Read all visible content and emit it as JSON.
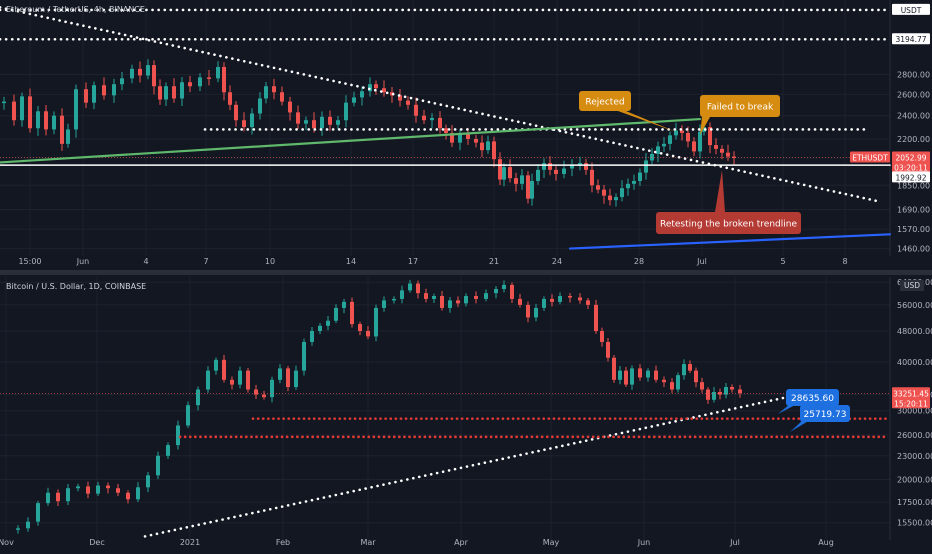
{
  "colors": {
    "background": "#131722",
    "grid": "#1e222d",
    "up": "#26a69a",
    "down": "#ef5350",
    "axis_text": "#b2b5be",
    "price_tag": "#ef5350",
    "white": "#ffffff",
    "green_line": "#5fb86b",
    "blue_line": "#2962ff",
    "orange_label": "#d68b11",
    "red_label": "#b43a34",
    "blue_label": "#1e6fe0",
    "support": "#e53935"
  },
  "chart_data": [
    {
      "type": "candlestick",
      "title": "Ethereum / TetherUS, 4h, BINANCE",
      "symbol_tag": "ETHUSDT",
      "y_scale": "log",
      "ylim": [
        1420,
        3700
      ],
      "y_ticks": [
        "2800.00",
        "2600.00",
        "2400.00",
        "2200.00",
        "2050.00",
        "1850.00",
        "1690.00",
        "1570.00",
        "1460.00"
      ],
      "x_ticks": [
        "15:00",
        "Jun",
        "4",
        "7",
        "10",
        "14",
        "17",
        "21",
        "24",
        "28",
        "Jul",
        "5",
        "8"
      ],
      "price_marks": [
        {
          "label": "USDT",
          "value": 3565
        },
        {
          "label": "3194.77",
          "value": 3194.77
        },
        {
          "label": "2052.99",
          "value": 2052.99
        },
        {
          "label": "03:20:11",
          "value": 1992.92
        },
        {
          "label": "1992.92",
          "value": 1992.92
        }
      ],
      "last_price": 2052.99,
      "candles_close_path": [
        [
          0,
          2530
        ],
        [
          10,
          2360
        ],
        [
          18,
          2580
        ],
        [
          26,
          2290
        ],
        [
          34,
          2440
        ],
        [
          42,
          2280
        ],
        [
          50,
          2400
        ],
        [
          58,
          2160
        ],
        [
          64,
          2280
        ],
        [
          72,
          2650
        ],
        [
          82,
          2520
        ],
        [
          90,
          2690
        ],
        [
          100,
          2590
        ],
        [
          110,
          2700
        ],
        [
          118,
          2760
        ],
        [
          128,
          2860
        ],
        [
          136,
          2790
        ],
        [
          144,
          2900
        ],
        [
          150,
          2680
        ],
        [
          156,
          2550
        ],
        [
          162,
          2680
        ],
        [
          170,
          2560
        ],
        [
          178,
          2720
        ],
        [
          186,
          2680
        ],
        [
          196,
          2770
        ],
        [
          205,
          2760
        ],
        [
          214,
          2880
        ],
        [
          220,
          2620
        ],
        [
          226,
          2500
        ],
        [
          232,
          2360
        ],
        [
          240,
          2300
        ],
        [
          248,
          2420
        ],
        [
          256,
          2560
        ],
        [
          262,
          2680
        ],
        [
          270,
          2620
        ],
        [
          278,
          2530
        ],
        [
          286,
          2430
        ],
        [
          294,
          2330
        ],
        [
          302,
          2360
        ],
        [
          310,
          2290
        ],
        [
          318,
          2390
        ],
        [
          326,
          2320
        ],
        [
          334,
          2360
        ],
        [
          342,
          2520
        ],
        [
          350,
          2570
        ],
        [
          358,
          2630
        ],
        [
          366,
          2700
        ],
        [
          372,
          2660
        ],
        [
          380,
          2620
        ],
        [
          388,
          2590
        ],
        [
          396,
          2540
        ],
        [
          404,
          2500
        ],
        [
          412,
          2400
        ],
        [
          420,
          2360
        ],
        [
          428,
          2380
        ],
        [
          436,
          2290
        ],
        [
          442,
          2250
        ],
        [
          448,
          2170
        ],
        [
          456,
          2240
        ],
        [
          464,
          2200
        ],
        [
          472,
          2170
        ],
        [
          478,
          2110
        ],
        [
          484,
          2180
        ],
        [
          490,
          2040
        ],
        [
          496,
          1890
        ],
        [
          500,
          1980
        ],
        [
          506,
          1900
        ],
        [
          512,
          1860
        ],
        [
          518,
          1920
        ],
        [
          524,
          1760
        ],
        [
          528,
          1880
        ],
        [
          534,
          1960
        ],
        [
          540,
          2010
        ],
        [
          546,
          1960
        ],
        [
          552,
          1930
        ],
        [
          560,
          1970
        ],
        [
          568,
          2000
        ],
        [
          576,
          2010
        ],
        [
          582,
          1960
        ],
        [
          588,
          1850
        ],
        [
          594,
          1820
        ],
        [
          600,
          1780
        ],
        [
          606,
          1750
        ],
        [
          612,
          1770
        ],
        [
          618,
          1830
        ],
        [
          624,
          1860
        ],
        [
          630,
          1880
        ],
        [
          636,
          1940
        ],
        [
          642,
          2030
        ],
        [
          648,
          2080
        ],
        [
          654,
          2140
        ],
        [
          660,
          2160
        ],
        [
          666,
          2230
        ],
        [
          672,
          2270
        ],
        [
          678,
          2250
        ],
        [
          684,
          2180
        ],
        [
          690,
          2100
        ],
        [
          696,
          2260
        ],
        [
          700,
          2300
        ],
        [
          706,
          2150
        ],
        [
          712,
          2120
        ],
        [
          718,
          2090
        ],
        [
          724,
          2060
        ],
        [
          730,
          2050
        ]
      ],
      "annotations": [
        {
          "text": "Rejected",
          "style": "orange"
        },
        {
          "text": "Failed to break",
          "style": "orange"
        },
        {
          "text": "Retesting the broken trendline",
          "style": "red"
        }
      ],
      "lines": [
        {
          "kind": "descending dotted trendline",
          "color": "white",
          "from": [
            0,
            3600
          ],
          "to": [
            880,
            1740
          ]
        },
        {
          "kind": "horizontal dotted resistance",
          "color": "white",
          "value": 2280
        },
        {
          "kind": "horizontal solid level",
          "color": "white",
          "value": 1995
        },
        {
          "kind": "ascending trendline",
          "color": "green",
          "from": [
            0,
            2015
          ],
          "to": [
            700,
            2370
          ]
        },
        {
          "kind": "ascending trendline",
          "color": "blue",
          "from": [
            570,
            1460
          ],
          "to": [
            890,
            1540
          ]
        },
        {
          "kind": "horizontal dotted",
          "color": "white",
          "value": 3565
        },
        {
          "kind": "horizontal dotted",
          "color": "white",
          "value": 3194.77
        }
      ]
    },
    {
      "type": "candlestick",
      "title": "Bitcoin / U.S. Dollar, 1D, COINBASE",
      "y_scale": "log",
      "ylim": [
        14000,
        66000
      ],
      "currency_tag": "USD",
      "y_ticks": [
        "64000.00",
        "56000.00",
        "48000.00",
        "40000.00",
        "33000.00",
        "30000.00",
        "26000.00",
        "23000.00",
        "20000.00",
        "17500.00",
        "15500.00"
      ],
      "x_ticks": [
        "Nov",
        "Dec",
        "2021",
        "Feb",
        "Mar",
        "Apr",
        "May",
        "Jun",
        "Jul",
        "Aug"
      ],
      "price_marks": [
        {
          "label": "33251.45",
          "value": 33251.45
        },
        {
          "label": "15:20:11",
          "value": 31700
        }
      ],
      "last_price": 33251.45,
      "candles_close_path": [
        [
          14,
          15000
        ],
        [
          24,
          15600
        ],
        [
          34,
          17400
        ],
        [
          44,
          18500
        ],
        [
          54,
          17600
        ],
        [
          64,
          19000
        ],
        [
          74,
          19200
        ],
        [
          84,
          18400
        ],
        [
          94,
          19300
        ],
        [
          104,
          19000
        ],
        [
          114,
          18500
        ],
        [
          124,
          17800
        ],
        [
          134,
          19100
        ],
        [
          144,
          20500
        ],
        [
          154,
          23000
        ],
        [
          164,
          24500
        ],
        [
          174,
          27500
        ],
        [
          184,
          31000
        ],
        [
          194,
          34000
        ],
        [
          204,
          38000
        ],
        [
          212,
          40500
        ],
        [
          220,
          36000
        ],
        [
          228,
          35000
        ],
        [
          236,
          38000
        ],
        [
          244,
          34000
        ],
        [
          252,
          33000
        ],
        [
          260,
          32500
        ],
        [
          268,
          36000
        ],
        [
          276,
          38500
        ],
        [
          284,
          34500
        ],
        [
          292,
          38000
        ],
        [
          300,
          45000
        ],
        [
          308,
          48000
        ],
        [
          316,
          49500
        ],
        [
          324,
          51000
        ],
        [
          332,
          55000
        ],
        [
          340,
          57000
        ],
        [
          348,
          50000
        ],
        [
          356,
          48000
        ],
        [
          364,
          46500
        ],
        [
          372,
          55000
        ],
        [
          380,
          57500
        ],
        [
          390,
          58000
        ],
        [
          398,
          61000
        ],
        [
          406,
          63500
        ],
        [
          414,
          60000
        ],
        [
          422,
          58000
        ],
        [
          430,
          59000
        ],
        [
          438,
          55000
        ],
        [
          446,
          57500
        ],
        [
          454,
          56500
        ],
        [
          462,
          59000
        ],
        [
          472,
          58000
        ],
        [
          482,
          60000
        ],
        [
          492,
          61500
        ],
        [
          500,
          63000
        ],
        [
          508,
          58000
        ],
        [
          516,
          56000
        ],
        [
          524,
          52000
        ],
        [
          532,
          55000
        ],
        [
          540,
          58000
        ],
        [
          548,
          57000
        ],
        [
          556,
          59000
        ],
        [
          566,
          58500
        ],
        [
          576,
          57500
        ],
        [
          584,
          56000
        ],
        [
          592,
          48000
        ],
        [
          598,
          45000
        ],
        [
          604,
          41000
        ],
        [
          610,
          36000
        ],
        [
          616,
          38000
        ],
        [
          622,
          35000
        ],
        [
          628,
          38500
        ],
        [
          636,
          36500
        ],
        [
          644,
          38000
        ],
        [
          652,
          36000
        ],
        [
          660,
          35500
        ],
        [
          668,
          34000
        ],
        [
          674,
          37000
        ],
        [
          680,
          39500
        ],
        [
          686,
          38000
        ],
        [
          692,
          35500
        ],
        [
          698,
          34000
        ],
        [
          704,
          32000
        ],
        [
          710,
          33500
        ],
        [
          716,
          33000
        ],
        [
          722,
          34500
        ],
        [
          728,
          34000
        ],
        [
          736,
          33251
        ]
      ],
      "annotations": [
        {
          "text": "28635.60",
          "style": "blue"
        },
        {
          "text": "25719.73",
          "style": "blue"
        }
      ],
      "lines": [
        {
          "kind": "ascending dotted trendline",
          "color": "white",
          "from": [
            145,
            14300
          ],
          "to": [
            820,
            33900
          ]
        },
        {
          "kind": "horizontal dotted support",
          "color": "red",
          "value": 28635.6
        },
        {
          "kind": "horizontal dotted support",
          "color": "red",
          "value": 25719.73
        }
      ]
    }
  ]
}
